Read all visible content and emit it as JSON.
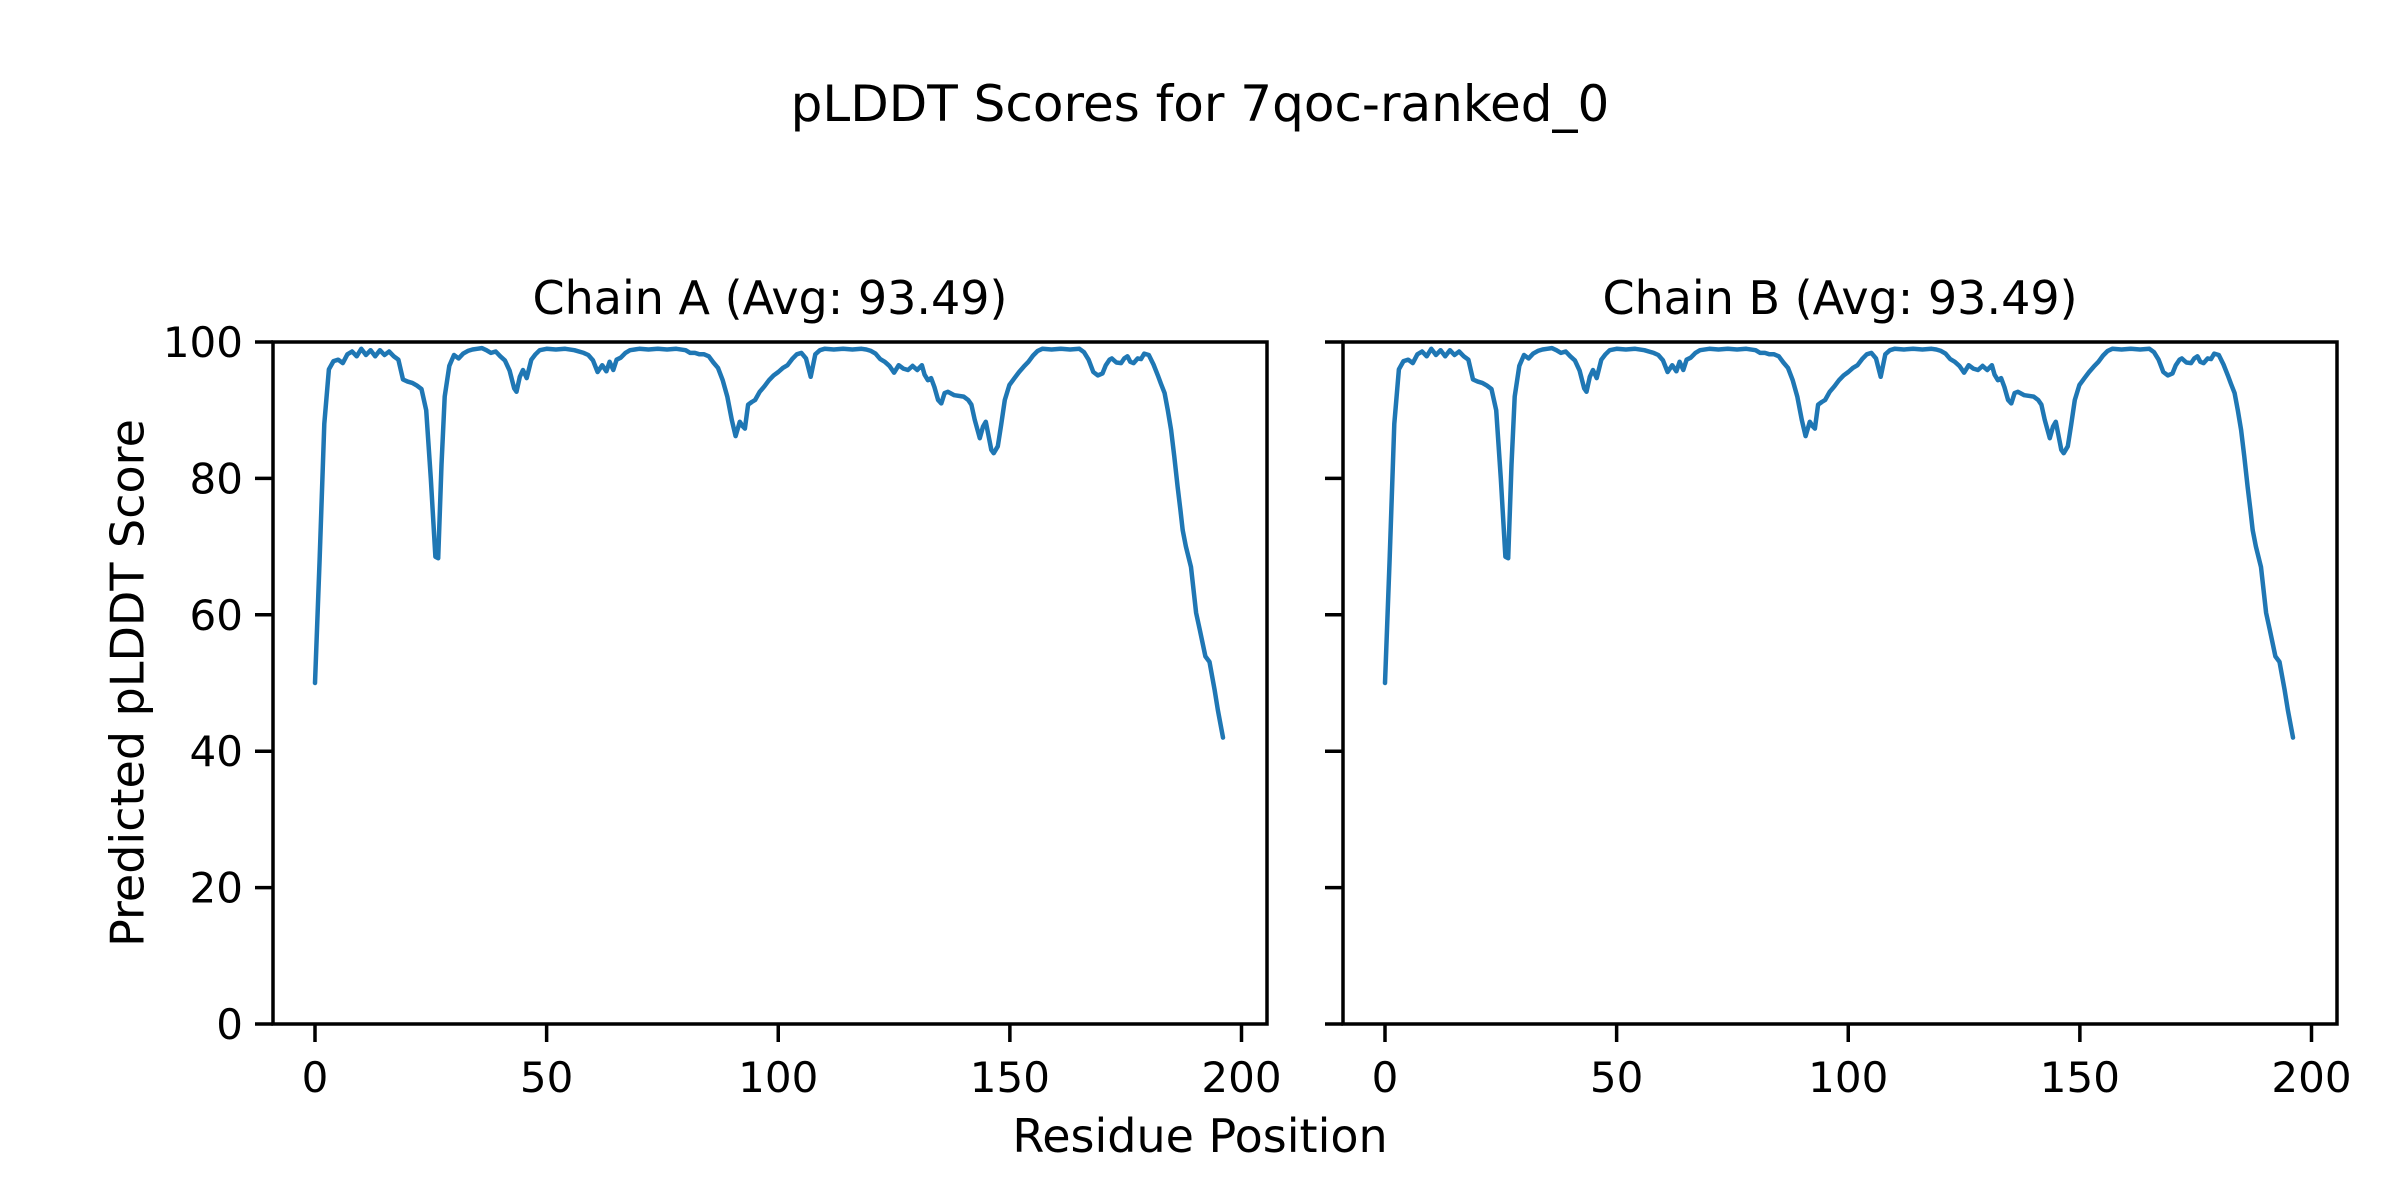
{
  "figure": {
    "suptitle": "pLDDT Scores for 7qoc-ranked_0",
    "xlabel": "Residue Position",
    "ylabel": "Predicted pLDDT Score",
    "background": "#ffffff",
    "text_color": "#000000",
    "spine_color": "#000000"
  },
  "chart_data": {
    "type": "line",
    "title": "pLDDT Scores for 7qoc-ranked_0",
    "xlabel": "Residue Position",
    "ylabel": "Predicted pLDDT Score",
    "grid": false,
    "legend_position": "none",
    "line_color": "#1f77b4",
    "xlim": [
      -9.1,
      205.6
    ],
    "ylim": [
      0,
      100
    ],
    "x_ticks": [
      0,
      50,
      100,
      150,
      200
    ],
    "y_ticks": [
      0,
      20,
      40,
      60,
      80,
      100
    ],
    "subplots": [
      {
        "title": "Chain A (Avg: 93.49)",
        "chain": "A",
        "avg_plddt": 93.49
      },
      {
        "title": "Chain B (Avg: 93.49)",
        "chain": "B",
        "avg_plddt": 93.49
      }
    ],
    "points_x_label": "residue_position",
    "points_y_label": "predicted_plddt",
    "points": [
      [
        0,
        50
      ],
      [
        1,
        68
      ],
      [
        2,
        88
      ],
      [
        3,
        96
      ],
      [
        4,
        97.2
      ],
      [
        5,
        97.4
      ],
      [
        6,
        96.9
      ],
      [
        7,
        98.2
      ],
      [
        8,
        98.6
      ],
      [
        9,
        97.9
      ],
      [
        10,
        99
      ],
      [
        11,
        98.1
      ],
      [
        12,
        98.8
      ],
      [
        13,
        97.9
      ],
      [
        14,
        98.8
      ],
      [
        15,
        98.1
      ],
      [
        16,
        98.6
      ],
      [
        17,
        97.9
      ],
      [
        18,
        97.4
      ],
      [
        19,
        94.5
      ],
      [
        20,
        94.2
      ],
      [
        21,
        94
      ],
      [
        22,
        93.6
      ],
      [
        23,
        93.1
      ],
      [
        24,
        90
      ],
      [
        25,
        80
      ],
      [
        26,
        68.5
      ],
      [
        26.6,
        68.3
      ],
      [
        27.3,
        82
      ],
      [
        28,
        92
      ],
      [
        29,
        96.5
      ],
      [
        30,
        98.1
      ],
      [
        31,
        97.6
      ],
      [
        32,
        98.3
      ],
      [
        33,
        98.7
      ],
      [
        34,
        98.9
      ],
      [
        35,
        99
      ],
      [
        36,
        99.1
      ],
      [
        37,
        98.8
      ],
      [
        38,
        98.4
      ],
      [
        39,
        98.6
      ],
      [
        40,
        97.9
      ],
      [
        41,
        97.3
      ],
      [
        42,
        95.8
      ],
      [
        43,
        93.2
      ],
      [
        43.5,
        92.7
      ],
      [
        44.2,
        94.9
      ],
      [
        44.9,
        95.9
      ],
      [
        45.7,
        94.7
      ],
      [
        46.7,
        97.4
      ],
      [
        47.6,
        98.2
      ],
      [
        48.5,
        98.8
      ],
      [
        50,
        99
      ],
      [
        52,
        98.9
      ],
      [
        54,
        99
      ],
      [
        56,
        98.8
      ],
      [
        58,
        98.4
      ],
      [
        59,
        98.1
      ],
      [
        60,
        97.3
      ],
      [
        61,
        95.6
      ],
      [
        62,
        96.6
      ],
      [
        62.9,
        95.7
      ],
      [
        63.6,
        97.1
      ],
      [
        64.4,
        95.9
      ],
      [
        65.1,
        97.4
      ],
      [
        66,
        97.7
      ],
      [
        67,
        98.4
      ],
      [
        68,
        98.8
      ],
      [
        70,
        99
      ],
      [
        72,
        98.9
      ],
      [
        74,
        99
      ],
      [
        76,
        98.9
      ],
      [
        78,
        99
      ],
      [
        80,
        98.8
      ],
      [
        81,
        98.4
      ],
      [
        82,
        98.4
      ],
      [
        83,
        98.2
      ],
      [
        84,
        98.2
      ],
      [
        85,
        97.9
      ],
      [
        86,
        97
      ],
      [
        87,
        96.2
      ],
      [
        88,
        94.4
      ],
      [
        89,
        92
      ],
      [
        90,
        88.5
      ],
      [
        90.8,
        86.2
      ],
      [
        91.7,
        88.3
      ],
      [
        92.4,
        87.6
      ],
      [
        92.8,
        87.3
      ],
      [
        93.5,
        90.8
      ],
      [
        94.3,
        91.2
      ],
      [
        95,
        91.5
      ],
      [
        96,
        92.7
      ],
      [
        97,
        93.5
      ],
      [
        98,
        94.4
      ],
      [
        99,
        95.1
      ],
      [
        100,
        95.6
      ],
      [
        101,
        96.2
      ],
      [
        102,
        96.6
      ],
      [
        103,
        97.5
      ],
      [
        104,
        98.2
      ],
      [
        105,
        98.4
      ],
      [
        106,
        97.6
      ],
      [
        107,
        94.9
      ],
      [
        108,
        98.2
      ],
      [
        109,
        98.8
      ],
      [
        110,
        99
      ],
      [
        112,
        98.9
      ],
      [
        114,
        99
      ],
      [
        116,
        98.9
      ],
      [
        118,
        99
      ],
      [
        119,
        98.9
      ],
      [
        120,
        98.7
      ],
      [
        121,
        98.3
      ],
      [
        122,
        97.5
      ],
      [
        123,
        97.1
      ],
      [
        124,
        96.5
      ],
      [
        125,
        95.5
      ],
      [
        126,
        96.6
      ],
      [
        127,
        96.1
      ],
      [
        128,
        95.9
      ],
      [
        129,
        96.5
      ],
      [
        130,
        95.9
      ],
      [
        131,
        96.6
      ],
      [
        131.6,
        95.2
      ],
      [
        132.3,
        94.4
      ],
      [
        133,
        94.7
      ],
      [
        133.7,
        93.4
      ],
      [
        134.5,
        91.5
      ],
      [
        135.2,
        91
      ],
      [
        135.9,
        92.5
      ],
      [
        136.6,
        92.7
      ],
      [
        138,
        92.2
      ],
      [
        140,
        92
      ],
      [
        141,
        91.5
      ],
      [
        141.7,
        90.8
      ],
      [
        142.4,
        88.6
      ],
      [
        143.5,
        85.9
      ],
      [
        144.2,
        87.6
      ],
      [
        144.8,
        88.3
      ],
      [
        145.3,
        86.6
      ],
      [
        146,
        84.2
      ],
      [
        146.5,
        83.7
      ],
      [
        147.4,
        84.7
      ],
      [
        148.1,
        87.8
      ],
      [
        148.9,
        91.5
      ],
      [
        149.9,
        93.7
      ],
      [
        151,
        94.7
      ],
      [
        152,
        95.6
      ],
      [
        153,
        96.4
      ],
      [
        154,
        97.1
      ],
      [
        155,
        98
      ],
      [
        156,
        98.7
      ],
      [
        157,
        99
      ],
      [
        159,
        98.9
      ],
      [
        161,
        99
      ],
      [
        163,
        98.9
      ],
      [
        165,
        99
      ],
      [
        166,
        98.5
      ],
      [
        167,
        97.4
      ],
      [
        168,
        95.6
      ],
      [
        169,
        95.1
      ],
      [
        170,
        95.4
      ],
      [
        170.7,
        96.6
      ],
      [
        171.5,
        97.4
      ],
      [
        172,
        97.6
      ],
      [
        173,
        97
      ],
      [
        174,
        96.9
      ],
      [
        174.7,
        97.6
      ],
      [
        175.4,
        97.9
      ],
      [
        176,
        97.1
      ],
      [
        176.7,
        96.9
      ],
      [
        177.6,
        97.6
      ],
      [
        178.3,
        97.5
      ],
      [
        179,
        98.3
      ],
      [
        180,
        98.1
      ],
      [
        181,
        96.7
      ],
      [
        182,
        95
      ],
      [
        182.6,
        93.9
      ],
      [
        183.4,
        92.5
      ],
      [
        184.1,
        90
      ],
      [
        184.8,
        87.1
      ],
      [
        185.5,
        83.2
      ],
      [
        186.2,
        78.8
      ],
      [
        186.8,
        75.4
      ],
      [
        187.3,
        72.4
      ],
      [
        188,
        70
      ],
      [
        189.1,
        67
      ],
      [
        190.2,
        60.3
      ],
      [
        191,
        57.8
      ],
      [
        192.2,
        53.9
      ],
      [
        193.1,
        53.1
      ],
      [
        194.2,
        49
      ],
      [
        194.9,
        46
      ],
      [
        196,
        42
      ]
    ]
  }
}
